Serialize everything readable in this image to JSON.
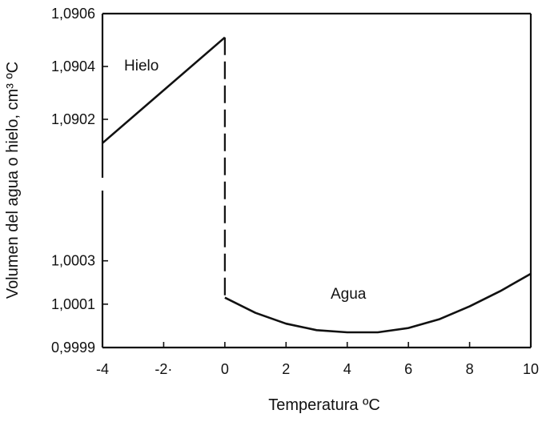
{
  "chart_data": {
    "type": "line",
    "title": "",
    "xlabel": "Temperatura ºC",
    "ylabel": "Volumen del agua o hielo, cm³ ºC",
    "x_ticks": [
      -4,
      -2,
      0,
      2,
      4,
      6,
      8,
      10
    ],
    "x_tick_labels": [
      "-4",
      "-2·",
      "0",
      "2",
      "4",
      "6",
      "8",
      "10"
    ],
    "xlim": [
      -4,
      10
    ],
    "y_scale": "broken",
    "y_upper_ticks": [
      1.0902,
      1.0904,
      1.0906
    ],
    "y_upper_tick_labels": [
      "1,0902",
      "1,0904",
      "1,0906"
    ],
    "y_upper_range": [
      1.09,
      1.0906
    ],
    "y_lower_ticks": [
      0.9999,
      1.0001,
      1.0003
    ],
    "y_lower_tick_labels": [
      "0,9999",
      "1,0001",
      "1,0003"
    ],
    "y_lower_range": [
      0.9999,
      1.00055
    ],
    "grid": false,
    "series": [
      {
        "name": "Hielo",
        "segment": "upper",
        "x": [
          -4,
          0
        ],
        "y": [
          1.09011,
          1.09051
        ]
      },
      {
        "name": "Agua",
        "segment": "lower",
        "x": [
          0,
          1,
          2,
          3,
          4,
          4.5,
          5,
          6,
          7,
          8,
          9,
          10
        ],
        "y": [
          1.00013,
          1.00006,
          1.00001,
          0.99998,
          0.99997,
          0.99997,
          0.99997,
          0.99999,
          1.00003,
          1.00009,
          1.00016,
          1.00024
        ]
      }
    ],
    "transition": {
      "x": 0,
      "style": "dashed"
    },
    "annotations": [
      {
        "text": "Hielo",
        "series": "Hielo"
      },
      {
        "text": "Agua",
        "series": "Agua"
      }
    ],
    "color": "#111111"
  }
}
